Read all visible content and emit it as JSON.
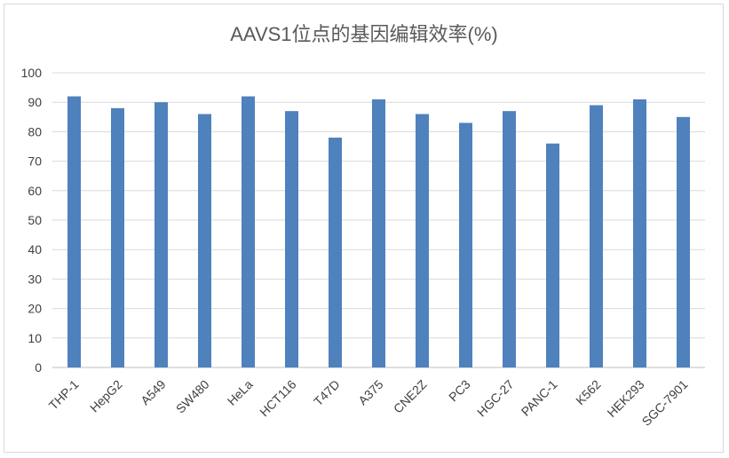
{
  "chart_data": {
    "type": "bar",
    "title": "AAVS1位点的基因编辑效率(%)",
    "xlabel": "",
    "ylabel": "",
    "categories": [
      "THP-1",
      "HepG2",
      "A549",
      "SW480",
      "HeLa",
      "HCT116",
      "T47D",
      "A375",
      "CNE2Z",
      "PC3",
      "HGC-27",
      "PANC-1",
      "K562",
      "HEK293",
      "SGC-7901"
    ],
    "values": [
      92,
      88,
      90,
      86,
      92,
      87,
      78,
      91,
      86,
      83,
      87,
      76,
      89,
      91,
      85
    ],
    "ylim": [
      0,
      100
    ],
    "yticks": [
      0,
      10,
      20,
      30,
      40,
      50,
      60,
      70,
      80,
      90,
      100
    ],
    "grid": true,
    "legend": "none",
    "colors": {
      "bar": "#4f81bd"
    }
  }
}
